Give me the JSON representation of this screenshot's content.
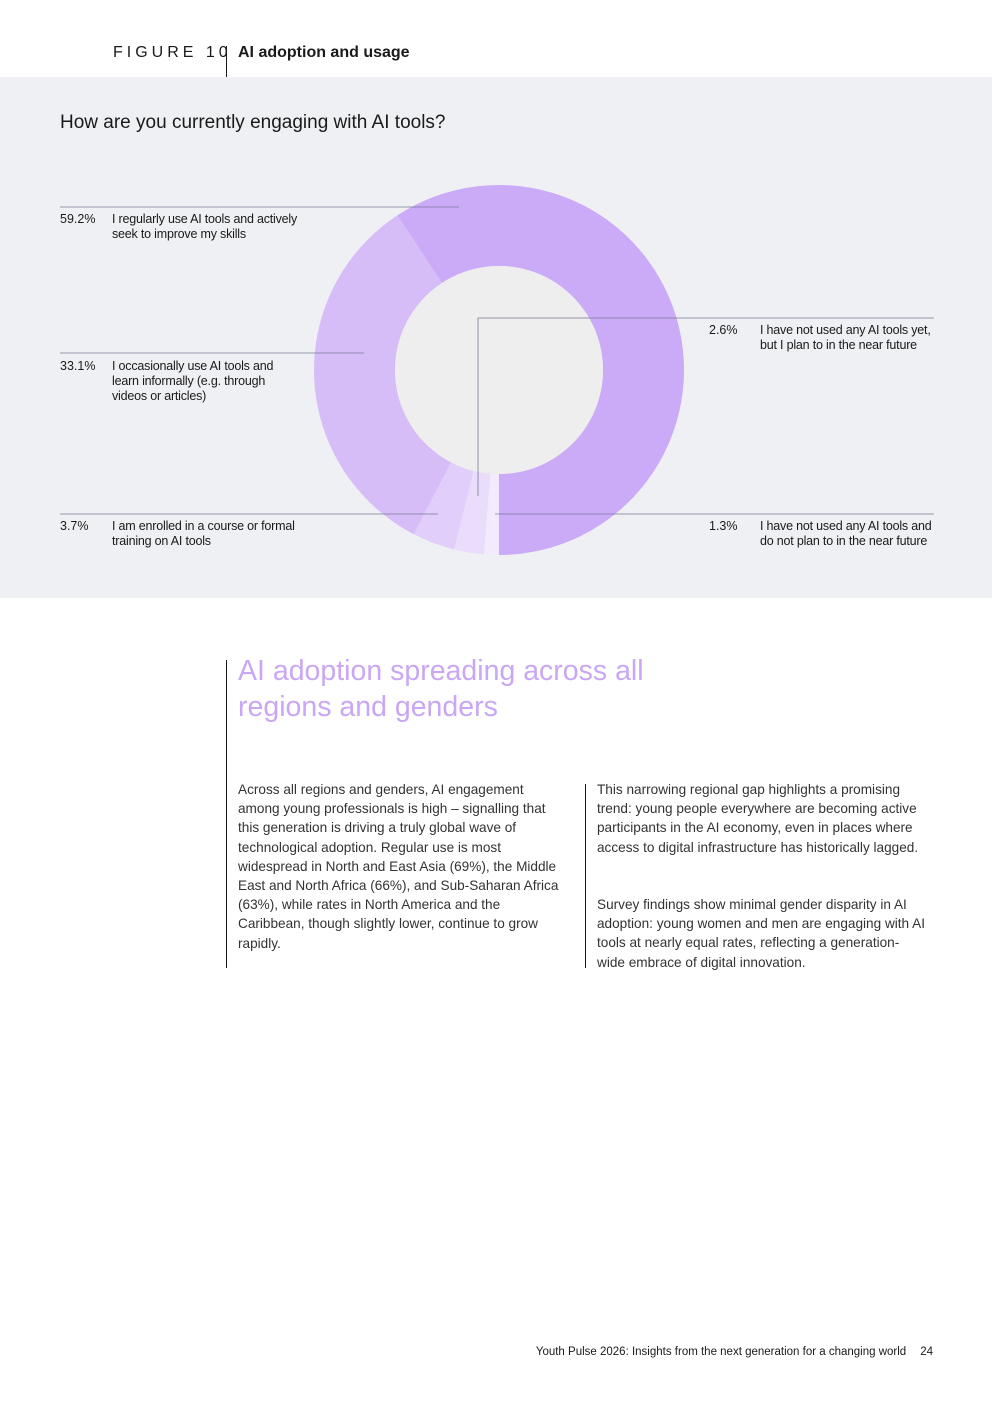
{
  "figure": {
    "number_label": "FIGURE 10",
    "title": "AI adoption and usage"
  },
  "chart_data": {
    "type": "pie",
    "title": "How are you currently engaging with AI tools?",
    "slices": [
      {
        "label": "I regularly use AI tools and actively seek to improve my skills",
        "value": 59.2,
        "display": "59.2%",
        "color": "#cbaaf7"
      },
      {
        "label": "I occasionally use AI tools and learn informally (e.g. through videos or articles)",
        "value": 33.1,
        "display": "33.1%",
        "color": "#d7bdf8"
      },
      {
        "label": "I am enrolled in a course or formal training on AI tools",
        "value": 3.7,
        "display": "3.7%",
        "color": "#e1cefa"
      },
      {
        "label": "I have not used any AI tools yet, but I plan to in the near future",
        "value": 2.6,
        "display": "2.6%",
        "color": "#eadcfb"
      },
      {
        "label": "I have not used any AI tools and do not plan to in the near future",
        "value": 1.3,
        "display": "1.3%",
        "color": "#f3ebfd"
      }
    ],
    "donut": true,
    "background": "#eff0f3"
  },
  "section": {
    "title": "AI adoption spreading across all regions and genders",
    "col1": "Across all regions and genders, AI engagement among young professionals is high – signalling that this generation is driving a truly global wave of technological adoption. Regular use is most widespread in North and East Asia (69%), the Middle East and North Africa (66%), and Sub-Saharan Africa (63%), while rates in North America and the Caribbean, though slightly lower, continue to grow rapidly.",
    "col2_p1": "This narrowing regional gap highlights a promising trend: young people everywhere are becoming active participants in the AI economy, even in places where access to digital infrastructure has historically lagged.",
    "col2_p2": "Survey findings show minimal gender disparity in AI adoption: young women and men are engaging with AI tools at nearly equal rates, reflecting a generation-wide embrace of digital innovation."
  },
  "footer": {
    "publication": "Youth Pulse 2026:",
    "subtitle": " Insights from the next generation for a changing world",
    "page": "24"
  }
}
